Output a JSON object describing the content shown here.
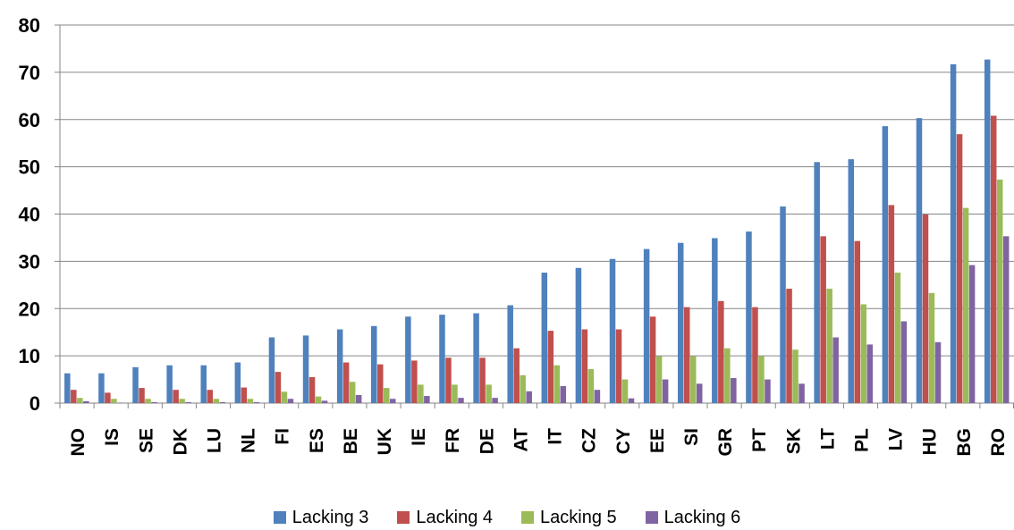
{
  "chart_data": {
    "type": "bar",
    "title": "",
    "xlabel": "",
    "ylabel": "",
    "ylim": [
      0,
      80
    ],
    "yticks": [
      "0",
      "10",
      "20",
      "30",
      "40",
      "50",
      "60",
      "70",
      "80"
    ],
    "grid": true,
    "legend_position": "bottom",
    "categories": [
      "NO",
      "IS",
      "SE",
      "DK",
      "LU",
      "NL",
      "FI",
      "ES",
      "BE",
      "UK",
      "IE",
      "FR",
      "DE",
      "AT",
      "IT",
      "CZ",
      "CY",
      "EE",
      "SI",
      "GR",
      "PT",
      "SK",
      "LT",
      "PL",
      "LV",
      "HU",
      "BG",
      "RO"
    ],
    "series": [
      {
        "name": "Lacking 3",
        "color": "#4F81BD",
        "values": [
          6.3,
          6.3,
          7.6,
          8.0,
          8.0,
          8.6,
          13.9,
          14.3,
          15.6,
          16.3,
          18.3,
          18.7,
          19.0,
          20.7,
          27.6,
          28.6,
          30.5,
          32.6,
          33.9,
          34.9,
          36.3,
          41.6,
          51.0,
          51.6,
          58.6,
          60.3,
          71.7,
          72.7
        ]
      },
      {
        "name": "Lacking 4",
        "color": "#C0504D",
        "values": [
          2.8,
          2.2,
          3.2,
          2.8,
          2.8,
          3.3,
          6.6,
          5.5,
          8.6,
          8.2,
          9.0,
          9.6,
          9.6,
          11.6,
          15.3,
          15.6,
          15.6,
          18.3,
          20.3,
          21.6,
          20.3,
          24.2,
          35.3,
          34.3,
          41.9,
          39.9,
          56.9,
          60.8
        ]
      },
      {
        "name": "Lacking 5",
        "color": "#9BBB59",
        "values": [
          1.1,
          0.9,
          0.9,
          0.9,
          0.9,
          0.9,
          2.4,
          1.4,
          4.5,
          3.2,
          3.9,
          3.9,
          3.9,
          5.9,
          8.0,
          7.2,
          5.0,
          9.9,
          9.9,
          11.6,
          9.9,
          11.3,
          24.2,
          20.9,
          27.6,
          23.3,
          41.3,
          47.3
        ]
      },
      {
        "name": "Lacking 6",
        "color": "#8064A2",
        "values": [
          0.4,
          0.1,
          0.2,
          0.2,
          0.2,
          0.2,
          0.9,
          0.5,
          1.7,
          0.9,
          1.5,
          1.1,
          1.1,
          2.5,
          3.6,
          2.8,
          1.0,
          5.0,
          4.1,
          5.3,
          5.0,
          4.1,
          13.9,
          12.4,
          17.3,
          12.9,
          29.2,
          35.3
        ]
      }
    ]
  }
}
